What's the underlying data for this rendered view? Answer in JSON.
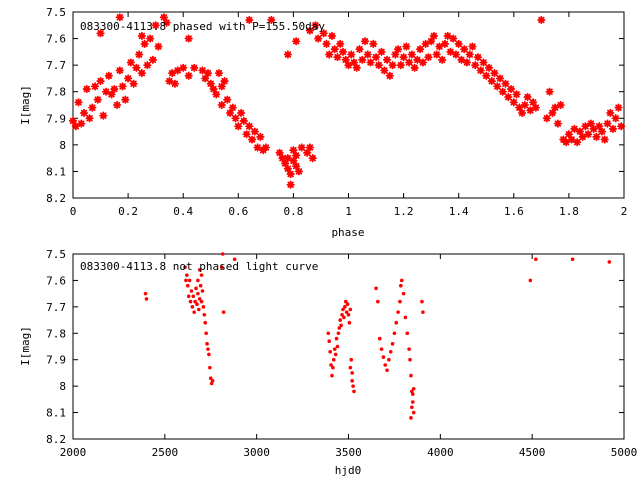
{
  "marker_color": "#ff0000",
  "chart_data": [
    {
      "type": "scatter",
      "title": "083300-4113.8 phased with P=155.50day",
      "xlabel": "phase",
      "ylabel": "I[mag]",
      "xlim": [
        0,
        2
      ],
      "ylim": [
        7.5,
        8.2
      ],
      "y_inverted": true,
      "grid": false,
      "xticks": [
        0,
        0.2,
        0.4,
        0.6,
        0.8,
        1,
        1.2,
        1.4,
        1.6,
        1.8,
        2
      ],
      "xtick_labels": [
        "0",
        "0.2",
        "0.4",
        "0.6",
        "0.8",
        "1",
        "1.2",
        "1.4",
        "1.6",
        "1.8",
        "2"
      ],
      "yticks": [
        7.5,
        7.6,
        7.7,
        7.8,
        7.9,
        8,
        8.1,
        8.2
      ],
      "ytick_labels": [
        "7.5",
        "7.6",
        "7.7",
        "7.8",
        "7.9",
        "8",
        "8.1",
        "8.2"
      ],
      "marker": "star",
      "points": [
        [
          0.0,
          7.91
        ],
        [
          0.01,
          7.93
        ],
        [
          0.02,
          7.84
        ],
        [
          0.03,
          7.92
        ],
        [
          0.04,
          7.88
        ],
        [
          0.05,
          7.79
        ],
        [
          0.06,
          7.9
        ],
        [
          0.07,
          7.86
        ],
        [
          0.08,
          7.78
        ],
        [
          0.09,
          7.83
        ],
        [
          0.1,
          7.76
        ],
        [
          0.11,
          7.89
        ],
        [
          0.12,
          7.8
        ],
        [
          0.13,
          7.74
        ],
        [
          0.14,
          7.81
        ],
        [
          0.15,
          7.79
        ],
        [
          0.16,
          7.85
        ],
        [
          0.17,
          7.72
        ],
        [
          0.18,
          7.78
        ],
        [
          0.19,
          7.83
        ],
        [
          0.2,
          7.75
        ],
        [
          0.21,
          7.69
        ],
        [
          0.22,
          7.77
        ],
        [
          0.23,
          7.71
        ],
        [
          0.24,
          7.66
        ],
        [
          0.25,
          7.73
        ],
        [
          0.26,
          7.62
        ],
        [
          0.27,
          7.7
        ],
        [
          0.28,
          7.6
        ],
        [
          0.29,
          7.68
        ],
        [
          0.3,
          7.55
        ],
        [
          0.31,
          7.63
        ],
        [
          0.33,
          7.52
        ],
        [
          0.35,
          7.76
        ],
        [
          0.36,
          7.73
        ],
        [
          0.37,
          7.77
        ],
        [
          0.38,
          7.72
        ],
        [
          0.4,
          7.71
        ],
        [
          0.42,
          7.74
        ],
        [
          0.44,
          7.71
        ],
        [
          0.47,
          7.72
        ],
        [
          0.48,
          7.75
        ],
        [
          0.49,
          7.73
        ],
        [
          0.5,
          7.77
        ],
        [
          0.51,
          7.79
        ],
        [
          0.52,
          7.81
        ],
        [
          0.53,
          7.73
        ],
        [
          0.54,
          7.85
        ],
        [
          0.55,
          7.76
        ],
        [
          0.56,
          7.83
        ],
        [
          0.57,
          7.88
        ],
        [
          0.58,
          7.86
        ],
        [
          0.59,
          7.9
        ],
        [
          0.6,
          7.93
        ],
        [
          0.61,
          7.88
        ],
        [
          0.62,
          7.91
        ],
        [
          0.63,
          7.96
        ],
        [
          0.64,
          7.93
        ],
        [
          0.65,
          7.98
        ],
        [
          0.66,
          7.95
        ],
        [
          0.67,
          8.01
        ],
        [
          0.68,
          7.97
        ],
        [
          0.69,
          8.02
        ],
        [
          0.7,
          8.01
        ],
        [
          0.75,
          8.03
        ],
        [
          0.76,
          8.05
        ],
        [
          0.77,
          8.07
        ],
        [
          0.78,
          8.09
        ],
        [
          0.78,
          8.05
        ],
        [
          0.79,
          8.11
        ],
        [
          0.79,
          8.15
        ],
        [
          0.8,
          8.02
        ],
        [
          0.8,
          8.06
        ],
        [
          0.81,
          8.08
        ],
        [
          0.81,
          8.04
        ],
        [
          0.82,
          8.1
        ],
        [
          0.83,
          8.01
        ],
        [
          0.85,
          8.03
        ],
        [
          0.86,
          8.01
        ],
        [
          0.87,
          8.05
        ],
        [
          0.17,
          7.52
        ],
        [
          0.25,
          7.59
        ],
        [
          0.34,
          7.54
        ],
        [
          0.42,
          7.6
        ],
        [
          0.64,
          7.53
        ],
        [
          0.72,
          7.53
        ],
        [
          0.78,
          7.66
        ],
        [
          0.81,
          7.61
        ],
        [
          0.86,
          7.57
        ],
        [
          0.88,
          7.55
        ],
        [
          0.89,
          7.6
        ],
        [
          0.91,
          7.58
        ],
        [
          0.92,
          7.62
        ],
        [
          0.93,
          7.66
        ],
        [
          0.94,
          7.59
        ],
        [
          0.95,
          7.64
        ],
        [
          0.96,
          7.67
        ],
        [
          0.97,
          7.62
        ],
        [
          0.98,
          7.65
        ],
        [
          0.99,
          7.68
        ],
        [
          1.0,
          7.7
        ],
        [
          1.01,
          7.66
        ],
        [
          1.02,
          7.69
        ],
        [
          1.03,
          7.71
        ],
        [
          1.04,
          7.64
        ],
        [
          1.05,
          7.68
        ],
        [
          1.06,
          7.61
        ],
        [
          1.07,
          7.66
        ],
        [
          1.08,
          7.69
        ],
        [
          1.09,
          7.62
        ],
        [
          1.1,
          7.67
        ],
        [
          1.11,
          7.7
        ],
        [
          1.12,
          7.65
        ],
        [
          1.13,
          7.72
        ],
        [
          1.14,
          7.68
        ],
        [
          1.15,
          7.74
        ],
        [
          1.16,
          7.7
        ],
        [
          1.17,
          7.66
        ],
        [
          1.18,
          7.64
        ],
        [
          1.19,
          7.7
        ],
        [
          1.2,
          7.67
        ],
        [
          1.21,
          7.63
        ],
        [
          1.22,
          7.69
        ],
        [
          1.23,
          7.66
        ],
        [
          1.24,
          7.71
        ],
        [
          1.25,
          7.68
        ],
        [
          1.26,
          7.64
        ],
        [
          1.27,
          7.69
        ],
        [
          1.28,
          7.62
        ],
        [
          1.29,
          7.67
        ],
        [
          1.3,
          7.61
        ],
        [
          1.31,
          7.59
        ],
        [
          1.32,
          7.66
        ],
        [
          1.33,
          7.63
        ],
        [
          1.34,
          7.68
        ],
        [
          1.35,
          7.62
        ],
        [
          1.36,
          7.59
        ],
        [
          1.37,
          7.65
        ],
        [
          1.38,
          7.6
        ],
        [
          1.39,
          7.66
        ],
        [
          1.4,
          7.62
        ],
        [
          1.41,
          7.68
        ],
        [
          1.42,
          7.64
        ],
        [
          1.43,
          7.69
        ],
        [
          1.44,
          7.66
        ],
        [
          1.45,
          7.63
        ],
        [
          1.46,
          7.7
        ],
        [
          1.47,
          7.67
        ],
        [
          1.48,
          7.72
        ],
        [
          1.49,
          7.69
        ],
        [
          1.5,
          7.74
        ],
        [
          1.51,
          7.71
        ],
        [
          1.52,
          7.76
        ],
        [
          1.53,
          7.73
        ],
        [
          1.54,
          7.78
        ],
        [
          1.55,
          7.75
        ],
        [
          1.56,
          7.8
        ],
        [
          1.57,
          7.77
        ],
        [
          1.58,
          7.82
        ],
        [
          1.59,
          7.79
        ],
        [
          1.6,
          7.84
        ],
        [
          1.61,
          7.81
        ],
        [
          1.62,
          7.86
        ],
        [
          1.63,
          7.88
        ],
        [
          1.64,
          7.85
        ],
        [
          1.65,
          7.82
        ],
        [
          1.66,
          7.87
        ],
        [
          1.67,
          7.84
        ],
        [
          1.68,
          7.86
        ],
        [
          1.7,
          7.53
        ],
        [
          1.72,
          7.9
        ],
        [
          1.74,
          7.88
        ],
        [
          1.76,
          7.92
        ],
        [
          1.78,
          7.98
        ],
        [
          1.79,
          7.99
        ],
        [
          1.8,
          7.96
        ],
        [
          1.81,
          7.98
        ],
        [
          1.82,
          7.94
        ],
        [
          1.83,
          7.99
        ],
        [
          1.84,
          7.95
        ],
        [
          1.85,
          7.97
        ],
        [
          1.86,
          7.93
        ],
        [
          1.87,
          7.96
        ],
        [
          1.88,
          7.92
        ],
        [
          1.89,
          7.94
        ],
        [
          1.9,
          7.97
        ],
        [
          1.91,
          7.93
        ],
        [
          1.92,
          7.95
        ],
        [
          1.93,
          7.98
        ],
        [
          1.94,
          7.92
        ],
        [
          1.95,
          7.88
        ],
        [
          1.96,
          7.94
        ],
        [
          1.97,
          7.9
        ],
        [
          1.98,
          7.86
        ],
        [
          1.99,
          7.93
        ],
        [
          1.75,
          7.86
        ],
        [
          1.77,
          7.85
        ],
        [
          1.73,
          7.8
        ],
        [
          0.54,
          7.78
        ],
        [
          0.1,
          7.58
        ]
      ]
    },
    {
      "type": "scatter",
      "title": "083300-4113.8 not phased light curve",
      "xlabel": "hjd0",
      "ylabel": "I[mag]",
      "xlim": [
        2000,
        5000
      ],
      "ylim": [
        7.5,
        8.2
      ],
      "y_inverted": true,
      "grid": false,
      "xticks": [
        2000,
        2500,
        3000,
        3500,
        4000,
        4500,
        5000
      ],
      "xtick_labels": [
        "2000",
        "2500",
        "3000",
        "3500",
        "4000",
        "4500",
        "5000"
      ],
      "yticks": [
        7.5,
        7.6,
        7.7,
        7.8,
        7.9,
        8,
        8.1,
        8.2
      ],
      "ytick_labels": [
        "7.5",
        "7.6",
        "7.7",
        "7.8",
        "7.9",
        "8",
        "8.1",
        "8.2"
      ],
      "marker": "dot",
      "points": [
        [
          2395,
          7.65
        ],
        [
          2400,
          7.67
        ],
        [
          2610,
          7.55
        ],
        [
          2615,
          7.6
        ],
        [
          2620,
          7.58
        ],
        [
          2625,
          7.62
        ],
        [
          2630,
          7.66
        ],
        [
          2635,
          7.6
        ],
        [
          2640,
          7.68
        ],
        [
          2645,
          7.64
        ],
        [
          2650,
          7.7
        ],
        [
          2655,
          7.66
        ],
        [
          2660,
          7.72
        ],
        [
          2665,
          7.68
        ],
        [
          2670,
          7.63
        ],
        [
          2675,
          7.69
        ],
        [
          2680,
          7.65
        ],
        [
          2685,
          7.71
        ],
        [
          2690,
          7.67
        ],
        [
          2695,
          7.62
        ],
        [
          2700,
          7.68
        ],
        [
          2705,
          7.64
        ],
        [
          2710,
          7.7
        ],
        [
          2715,
          7.73
        ],
        [
          2720,
          7.76
        ],
        [
          2725,
          7.8
        ],
        [
          2730,
          7.84
        ],
        [
          2735,
          7.86
        ],
        [
          2740,
          7.88
        ],
        [
          2745,
          7.93
        ],
        [
          2750,
          7.97
        ],
        [
          2755,
          7.99
        ],
        [
          2760,
          7.98
        ],
        [
          2700,
          7.58
        ],
        [
          2690,
          7.56
        ],
        [
          2680,
          7.6
        ],
        [
          2810,
          7.55
        ],
        [
          2820,
          7.72
        ],
        [
          2815,
          7.5
        ],
        [
          2880,
          7.52
        ],
        [
          3390,
          7.8
        ],
        [
          3395,
          7.83
        ],
        [
          3400,
          7.87
        ],
        [
          3405,
          7.92
        ],
        [
          3410,
          7.96
        ],
        [
          3415,
          7.93
        ],
        [
          3420,
          7.9
        ],
        [
          3425,
          7.86
        ],
        [
          3430,
          7.88
        ],
        [
          3435,
          7.82
        ],
        [
          3440,
          7.85
        ],
        [
          3445,
          7.8
        ],
        [
          3450,
          7.78
        ],
        [
          3455,
          7.75
        ],
        [
          3460,
          7.77
        ],
        [
          3465,
          7.73
        ],
        [
          3470,
          7.71
        ],
        [
          3475,
          7.74
        ],
        [
          3480,
          7.7
        ],
        [
          3485,
          7.68
        ],
        [
          3490,
          7.72
        ],
        [
          3495,
          7.69
        ],
        [
          3500,
          7.73
        ],
        [
          3505,
          7.76
        ],
        [
          3510,
          7.71
        ],
        [
          3515,
          7.9
        ],
        [
          3520,
          7.95
        ],
        [
          3525,
          8.0
        ],
        [
          3530,
          8.02
        ],
        [
          3520,
          7.98
        ],
        [
          3510,
          7.93
        ],
        [
          3650,
          7.63
        ],
        [
          3660,
          7.68
        ],
        [
          3670,
          7.82
        ],
        [
          3680,
          7.86
        ],
        [
          3690,
          7.89
        ],
        [
          3700,
          7.92
        ],
        [
          3710,
          7.94
        ],
        [
          3720,
          7.9
        ],
        [
          3730,
          7.87
        ],
        [
          3740,
          7.84
        ],
        [
          3750,
          7.8
        ],
        [
          3760,
          7.76
        ],
        [
          3770,
          7.72
        ],
        [
          3780,
          7.68
        ],
        [
          3785,
          7.62
        ],
        [
          3790,
          7.6
        ],
        [
          3800,
          7.65
        ],
        [
          3810,
          7.74
        ],
        [
          3820,
          7.8
        ],
        [
          3830,
          7.86
        ],
        [
          3835,
          7.9
        ],
        [
          3840,
          7.96
        ],
        [
          3845,
          8.02
        ],
        [
          3850,
          8.06
        ],
        [
          3855,
          8.1
        ],
        [
          3845,
          8.08
        ],
        [
          3850,
          8.03
        ],
        [
          3840,
          8.12
        ],
        [
          3855,
          8.01
        ],
        [
          3900,
          7.68
        ],
        [
          3905,
          7.72
        ],
        [
          4490,
          7.6
        ],
        [
          4520,
          7.52
        ],
        [
          4720,
          7.52
        ],
        [
          4920,
          7.53
        ]
      ]
    }
  ]
}
